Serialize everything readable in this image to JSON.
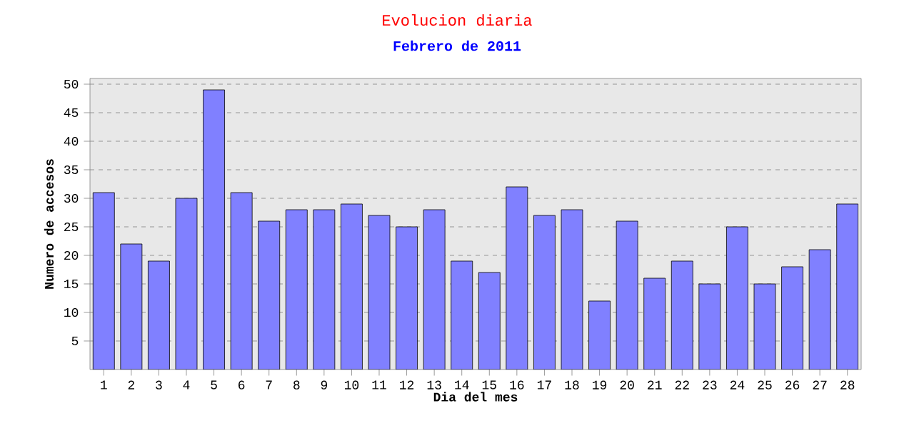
{
  "chart_data": {
    "type": "bar",
    "title": "Evolucion diaria",
    "subtitle": "Febrero de 2011",
    "xlabel": "Dia del mes",
    "ylabel": "Numero de accesos",
    "categories": [
      "1",
      "2",
      "3",
      "4",
      "5",
      "6",
      "7",
      "8",
      "9",
      "10",
      "11",
      "12",
      "13",
      "14",
      "15",
      "16",
      "17",
      "18",
      "19",
      "20",
      "21",
      "22",
      "23",
      "24",
      "25",
      "26",
      "27",
      "28"
    ],
    "values": [
      31,
      22,
      19,
      30,
      49,
      31,
      26,
      28,
      28,
      29,
      27,
      25,
      28,
      19,
      17,
      32,
      27,
      28,
      12,
      26,
      16,
      19,
      15,
      25,
      15,
      18,
      21,
      29
    ],
    "color": "#8080ff",
    "ylim": [
      0,
      51
    ],
    "yticks": [
      5,
      10,
      15,
      20,
      25,
      30,
      35,
      40,
      45,
      50
    ],
    "grid": "y"
  }
}
